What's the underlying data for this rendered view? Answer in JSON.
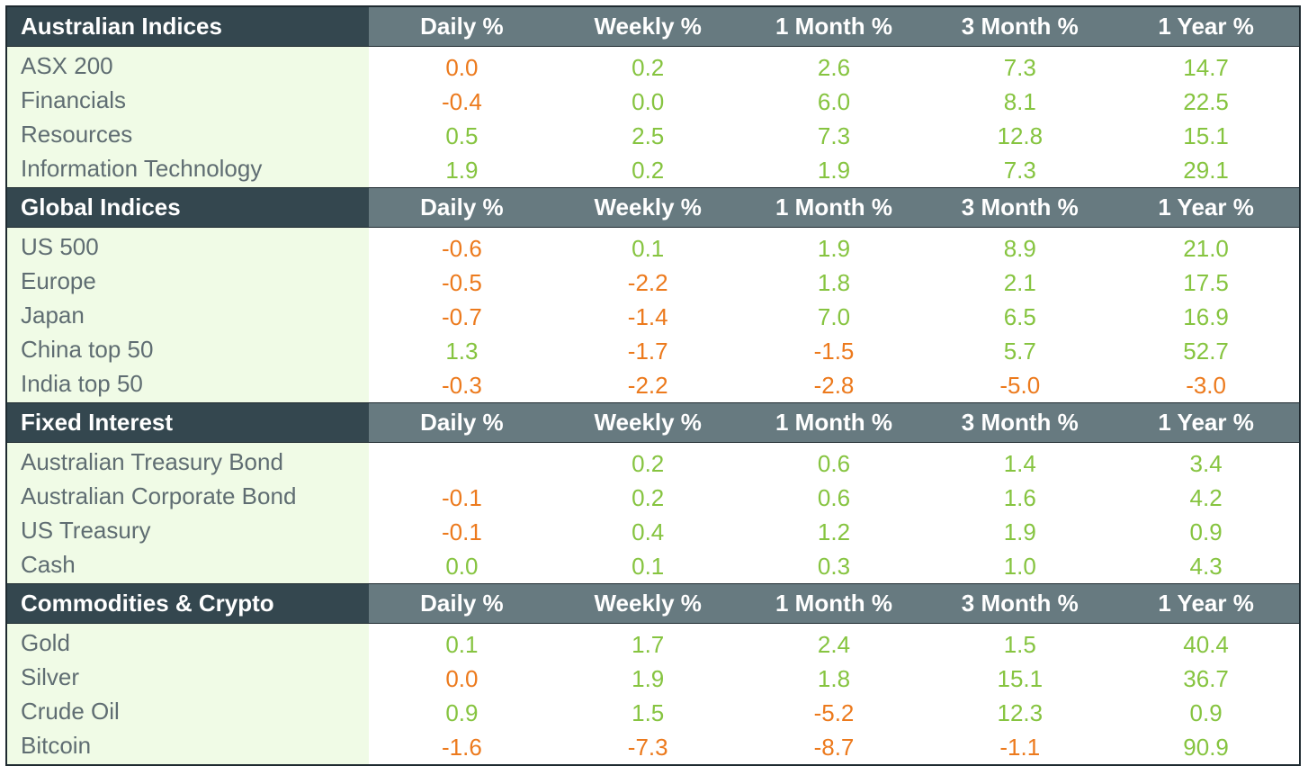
{
  "colors": {
    "header_dark": "#34474f",
    "header_mid": "#677a80",
    "label_bg": "#f0fbe6",
    "positive": "#86c440",
    "negative": "#ec7a1d",
    "label_text": "#5f6d72"
  },
  "columns": [
    "Daily %",
    "Weekly %",
    "1 Month %",
    "3 Month %",
    "1 Year %"
  ],
  "sections": [
    {
      "title": "Australian Indices",
      "rows": [
        {
          "name": "ASX 200",
          "values": [
            "0.0",
            "0.2",
            "2.6",
            "7.3",
            "14.7"
          ],
          "tones": [
            "neg",
            "pos",
            "pos",
            "pos",
            "pos"
          ]
        },
        {
          "name": "Financials",
          "values": [
            "-0.4",
            "0.0",
            "6.0",
            "8.1",
            "22.5"
          ],
          "tones": [
            "neg",
            "pos",
            "pos",
            "pos",
            "pos"
          ]
        },
        {
          "name": "Resources",
          "values": [
            "0.5",
            "2.5",
            "7.3",
            "12.8",
            "15.1"
          ],
          "tones": [
            "pos",
            "pos",
            "pos",
            "pos",
            "pos"
          ]
        },
        {
          "name": "Information Technology",
          "values": [
            "1.9",
            "0.2",
            "1.9",
            "7.3",
            "29.1"
          ],
          "tones": [
            "pos",
            "pos",
            "pos",
            "pos",
            "pos"
          ]
        }
      ]
    },
    {
      "title": "Global Indices",
      "rows": [
        {
          "name": "US 500",
          "values": [
            "-0.6",
            "0.1",
            "1.9",
            "8.9",
            "21.0"
          ],
          "tones": [
            "neg",
            "pos",
            "pos",
            "pos",
            "pos"
          ]
        },
        {
          "name": "Europe",
          "values": [
            "-0.5",
            "-2.2",
            "1.8",
            "2.1",
            "17.5"
          ],
          "tones": [
            "neg",
            "neg",
            "pos",
            "pos",
            "pos"
          ]
        },
        {
          "name": "Japan",
          "values": [
            "-0.7",
            "-1.4",
            "7.0",
            "6.5",
            "16.9"
          ],
          "tones": [
            "neg",
            "neg",
            "pos",
            "pos",
            "pos"
          ]
        },
        {
          "name": "China top 50",
          "values": [
            "1.3",
            "-1.7",
            "-1.5",
            "5.7",
            "52.7"
          ],
          "tones": [
            "pos",
            "neg",
            "neg",
            "pos",
            "pos"
          ]
        },
        {
          "name": "India top 50",
          "values": [
            "-0.3",
            "-2.2",
            "-2.8",
            "-5.0",
            "-3.0"
          ],
          "tones": [
            "neg",
            "neg",
            "neg",
            "neg",
            "neg"
          ]
        }
      ]
    },
    {
      "title": "Fixed Interest",
      "rows": [
        {
          "name": "Australian Treasury Bond",
          "values": [
            "",
            "0.2",
            "0.6",
            "1.4",
            "3.4"
          ],
          "tones": [
            "pos",
            "pos",
            "pos",
            "pos",
            "pos"
          ]
        },
        {
          "name": "Australian Corporate Bond",
          "values": [
            "-0.1",
            "0.2",
            "0.6",
            "1.6",
            "4.2"
          ],
          "tones": [
            "neg",
            "pos",
            "pos",
            "pos",
            "pos"
          ]
        },
        {
          "name": "US Treasury",
          "values": [
            "-0.1",
            "0.4",
            "1.2",
            "1.9",
            "0.9"
          ],
          "tones": [
            "neg",
            "pos",
            "pos",
            "pos",
            "pos"
          ]
        },
        {
          "name": "Cash",
          "values": [
            "0.0",
            "0.1",
            "0.3",
            "1.0",
            "4.3"
          ],
          "tones": [
            "pos",
            "pos",
            "pos",
            "pos",
            "pos"
          ]
        }
      ]
    },
    {
      "title": "Commodities & Crypto",
      "rows": [
        {
          "name": "Gold",
          "values": [
            "0.1",
            "1.7",
            "2.4",
            "1.5",
            "40.4"
          ],
          "tones": [
            "pos",
            "pos",
            "pos",
            "pos",
            "pos"
          ]
        },
        {
          "name": "Silver",
          "values": [
            "0.0",
            "1.9",
            "1.8",
            "15.1",
            "36.7"
          ],
          "tones": [
            "neg",
            "pos",
            "pos",
            "pos",
            "pos"
          ]
        },
        {
          "name": "Crude Oil",
          "values": [
            "0.9",
            "1.5",
            "-5.2",
            "12.3",
            "0.9"
          ],
          "tones": [
            "pos",
            "pos",
            "neg",
            "pos",
            "pos"
          ]
        },
        {
          "name": "Bitcoin",
          "values": [
            "-1.6",
            "-7.3",
            "-8.7",
            "-1.1",
            "90.9"
          ],
          "tones": [
            "neg",
            "neg",
            "neg",
            "neg",
            "pos"
          ]
        }
      ]
    }
  ]
}
